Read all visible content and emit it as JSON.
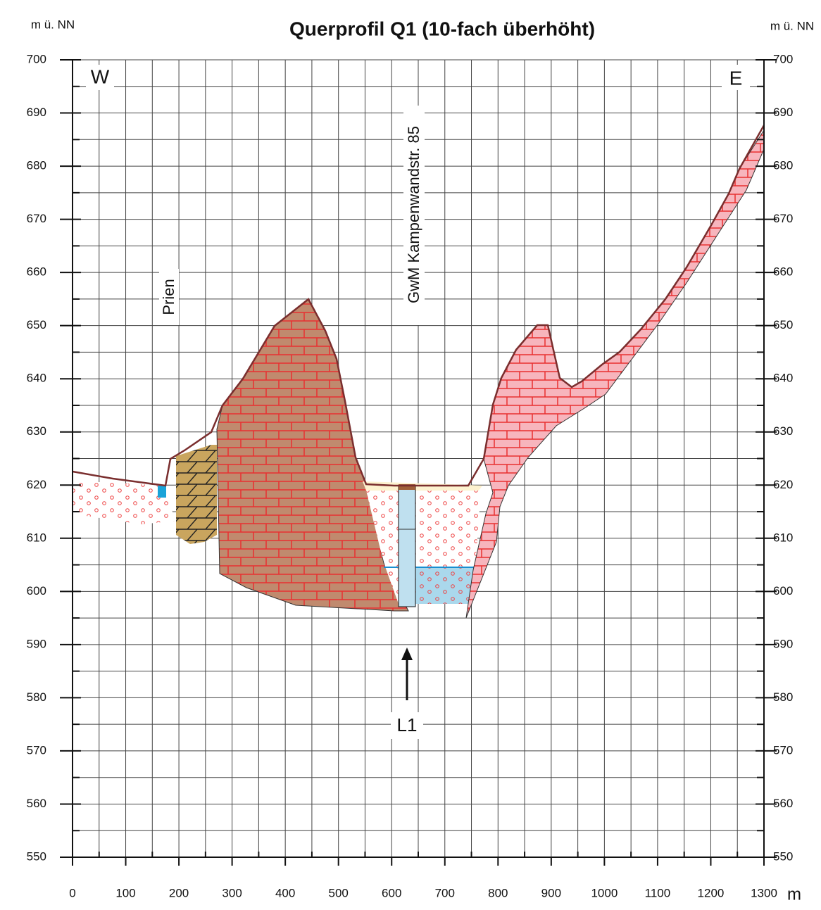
{
  "header": {
    "title": "Querprofil Q1 (10-fach überhöht)",
    "y_unit_left": "m ü. NN",
    "y_unit_right": "m ü. NN",
    "x_unit": "m"
  },
  "axes": {
    "xlim": [
      0,
      1300
    ],
    "ylim": [
      550,
      700
    ],
    "xticks": [
      0,
      100,
      200,
      300,
      400,
      500,
      600,
      700,
      800,
      900,
      1000,
      1100,
      1200,
      1300
    ],
    "yticks": [
      550,
      560,
      570,
      580,
      590,
      600,
      610,
      620,
      630,
      640,
      650,
      660,
      670,
      680,
      690,
      700
    ]
  },
  "labels": {
    "west": "W",
    "east": "E",
    "river": "Prien",
    "well": "GwM Kampenwandstr. 85",
    "section": "L1"
  }
}
